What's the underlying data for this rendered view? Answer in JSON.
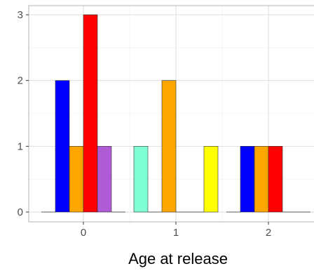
{
  "chart_data": {
    "type": "bar",
    "title": "",
    "xlabel": "Age at release",
    "ylabel": "",
    "categories": [
      "0",
      "1",
      "2"
    ],
    "ylim": [
      0,
      3
    ],
    "yticks": [
      "0",
      "1",
      "2",
      "3"
    ],
    "grid": true,
    "legend": "none",
    "colors": {
      "panel_border": "#b3b3b3",
      "grid_major": "#dedede",
      "grid_minor": "#efefef",
      "bar_stroke": "#333333"
    },
    "groups": [
      {
        "category": "0",
        "bars": [
          {
            "value": 0,
            "color": "#f4a261"
          },
          {
            "value": 2,
            "color": "#0000ff"
          },
          {
            "value": 1,
            "color": "#ffa500"
          },
          {
            "value": 3,
            "color": "#ff0000"
          },
          {
            "value": 1,
            "color": "#b05bd6"
          },
          {
            "value": 0,
            "color": "#cccccc"
          }
        ]
      },
      {
        "category": "1",
        "bars": [
          {
            "value": 1,
            "color": "#7fffd4"
          },
          {
            "value": 0,
            "color": "#cccccc"
          },
          {
            "value": 2,
            "color": "#ffa500"
          },
          {
            "value": 0,
            "color": "#cccccc"
          },
          {
            "value": 0,
            "color": "#cccccc"
          },
          {
            "value": 1,
            "color": "#ffff00"
          }
        ]
      },
      {
        "category": "2",
        "bars": [
          {
            "value": 0,
            "color": "#cccccc"
          },
          {
            "value": 1,
            "color": "#0000ff"
          },
          {
            "value": 1,
            "color": "#ffa500"
          },
          {
            "value": 1,
            "color": "#ff0000"
          },
          {
            "value": 0,
            "color": "#cccccc"
          },
          {
            "value": 0,
            "color": "#cccccc"
          }
        ]
      }
    ]
  }
}
